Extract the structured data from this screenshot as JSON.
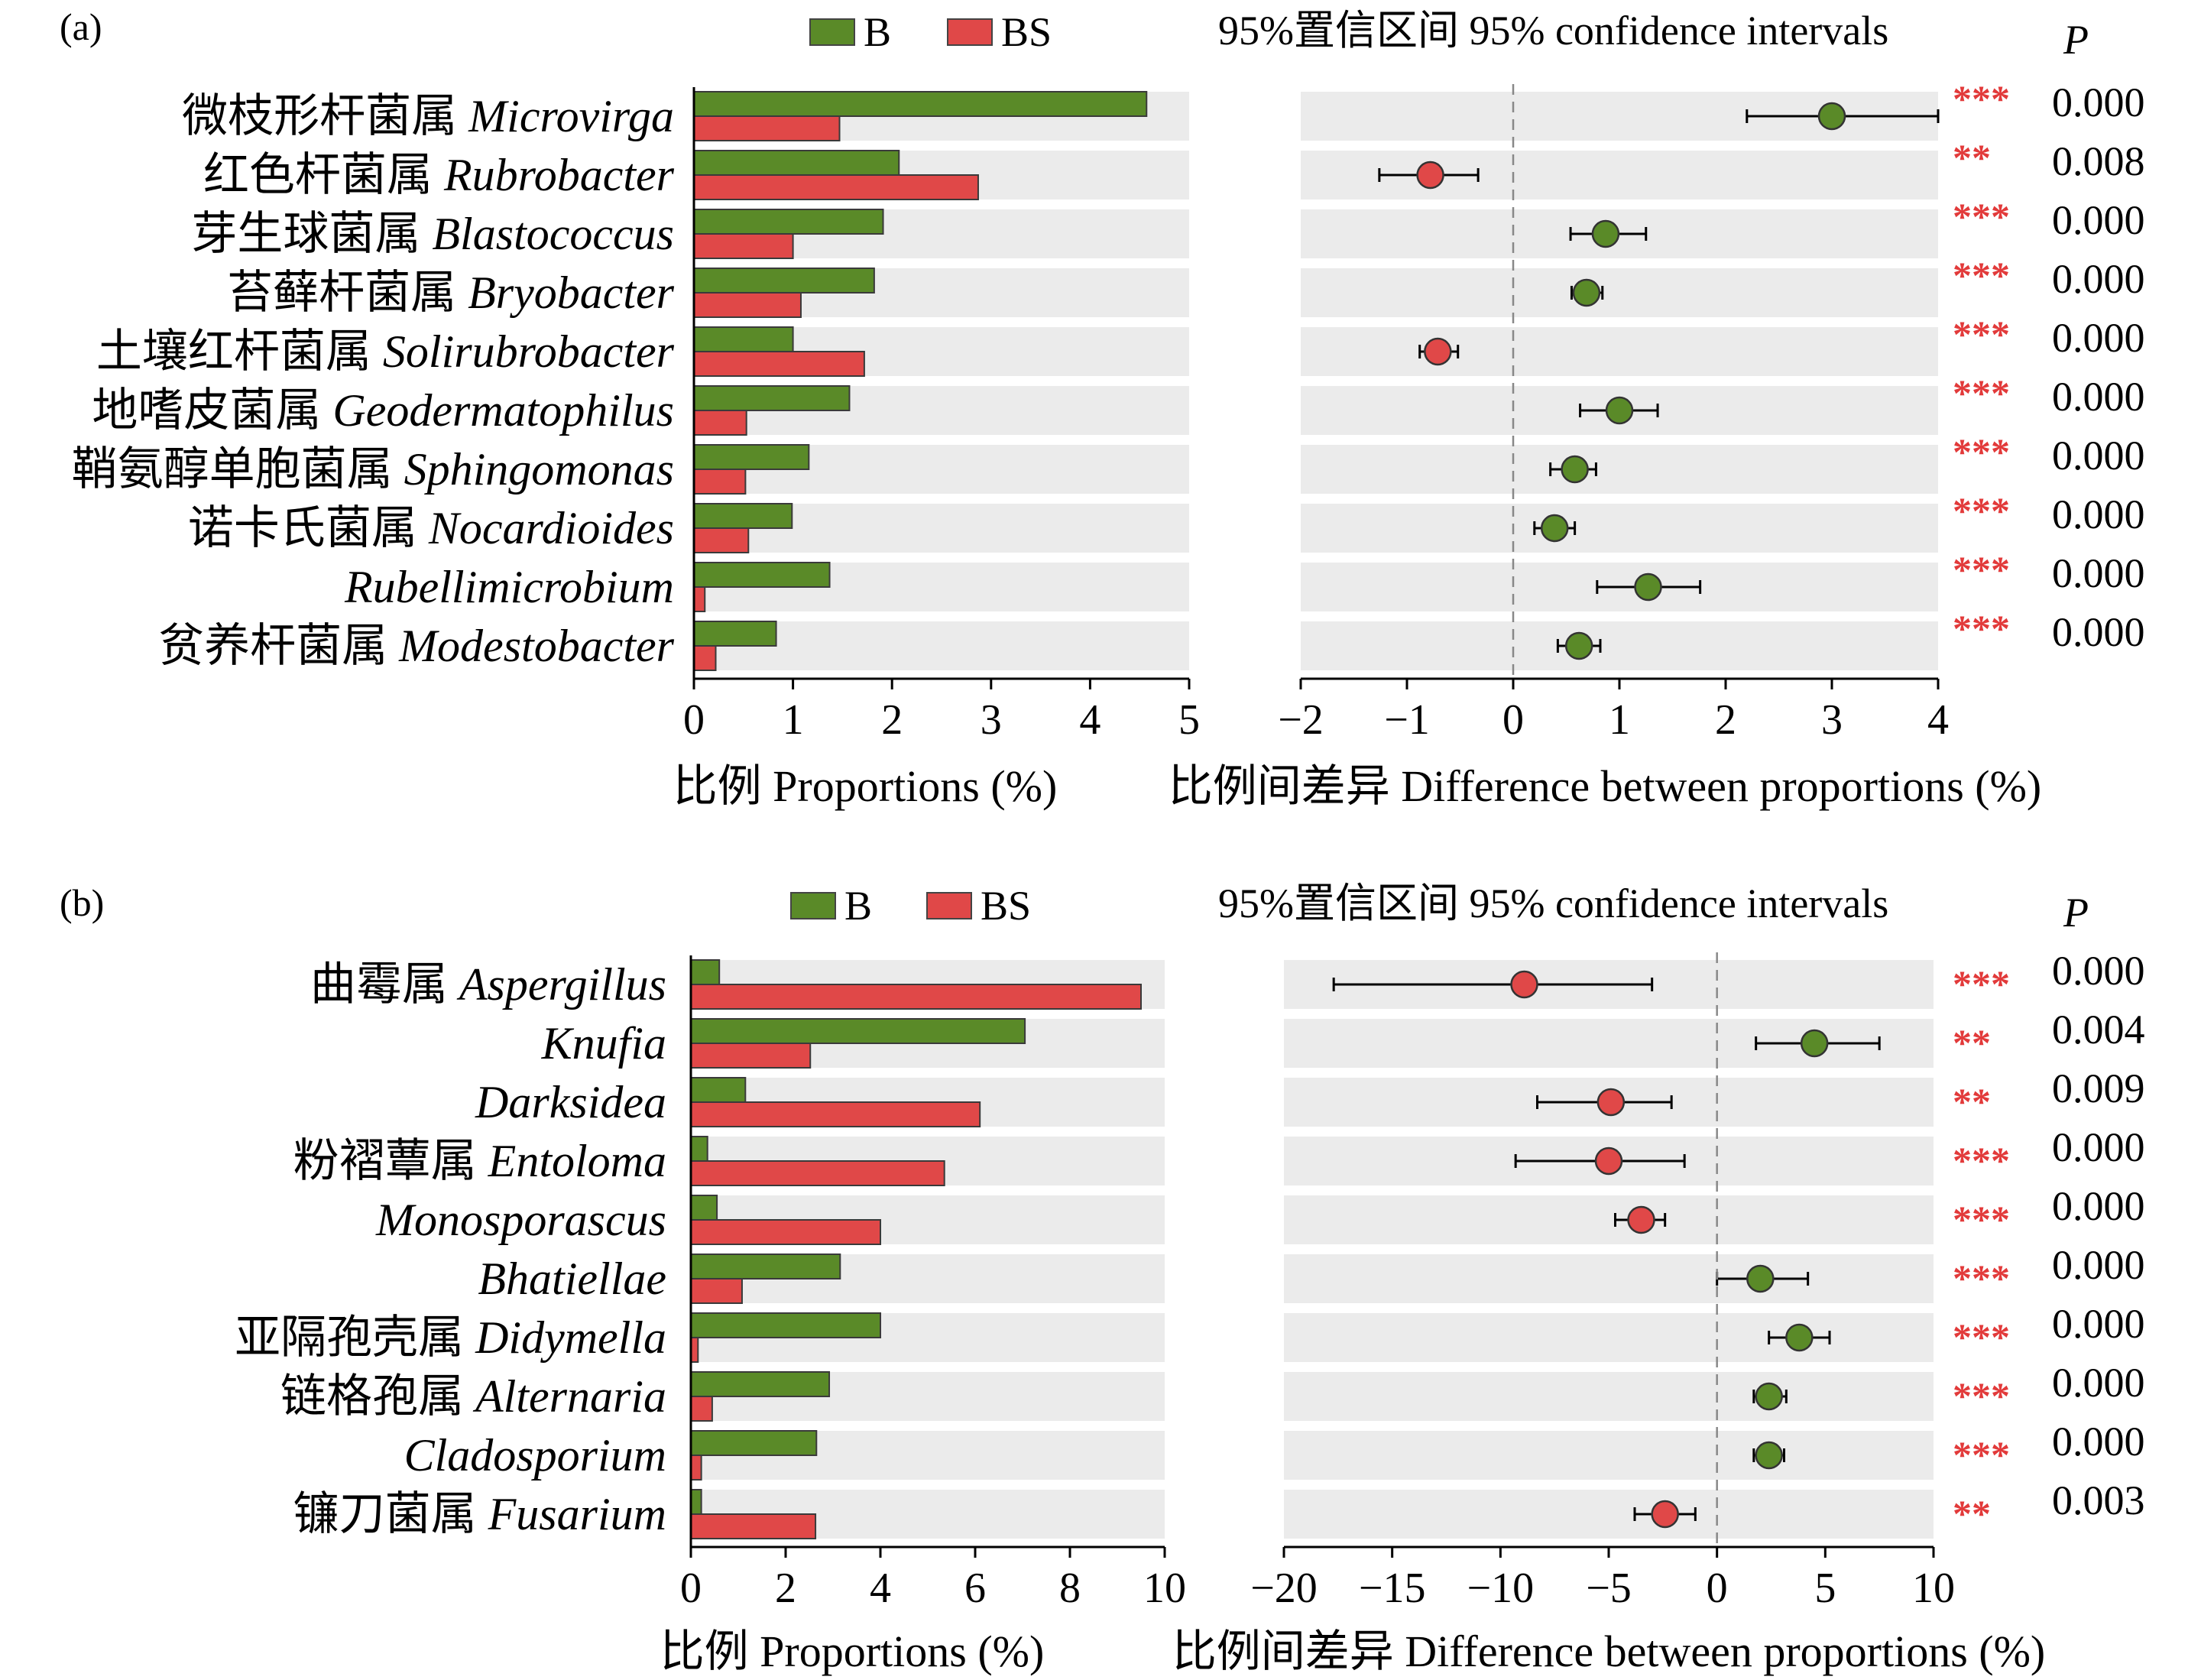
{
  "colors": {
    "B": "#5a8a28",
    "BS": "#e04848",
    "row_bg": "#ebebeb",
    "sig": "#e23a3a"
  },
  "legend": {
    "B": "B",
    "BS": "BS"
  },
  "panels": [
    {
      "panel_label": "(a)",
      "ci_title": "95%置信区间 95% confidence intervals",
      "p_header": "P",
      "prop_xlabel": "比例 Proportions (%)",
      "diff_xlabel": "比例间差异 Difference between proportions (%)",
      "prop_ticks": [
        "0",
        "1",
        "2",
        "3",
        "4",
        "5"
      ],
      "diff_ticks": [
        "−2",
        "−1",
        "0",
        "1",
        "2",
        "3",
        "4"
      ]
    },
    {
      "panel_label": "(b)",
      "ci_title": "95%置信区间 95% confidence intervals",
      "p_header": "P",
      "prop_xlabel": "比例 Proportions (%)",
      "diff_xlabel": "比例间差异 Difference between proportions (%)",
      "prop_ticks": [
        "0",
        "2",
        "4",
        "6",
        "8",
        "10"
      ],
      "diff_ticks": [
        "−20",
        "−15",
        "−10",
        "−5",
        "0",
        "5",
        "10"
      ]
    }
  ],
  "chart_data": [
    {
      "type": "bar",
      "panel": "(a)",
      "legend": [
        "B",
        "BS"
      ],
      "xlim_proportions": [
        0,
        5
      ],
      "xlim_difference": [
        -2,
        4
      ],
      "rows": [
        {
          "cn": "微枝形杆菌属",
          "genus": "Microvirga",
          "B": 4.57,
          "BS": 1.47,
          "diff": 3.0,
          "ci": [
            2.2,
            4.0
          ],
          "sig": "***",
          "p": "0.000"
        },
        {
          "cn": "红色杆菌属",
          "genus": "Rubrobacter",
          "B": 2.07,
          "BS": 2.87,
          "diff": -0.78,
          "ci": [
            -1.26,
            -0.33
          ],
          "sig": "**",
          "p": "0.008"
        },
        {
          "cn": "芽生球菌属",
          "genus": "Blastococcus",
          "B": 1.91,
          "BS": 1.0,
          "diff": 0.87,
          "ci": [
            0.54,
            1.25
          ],
          "sig": "***",
          "p": "0.000"
        },
        {
          "cn": "苔藓杆菌属",
          "genus": "Bryobacter",
          "B": 1.82,
          "BS": 1.08,
          "diff": 0.69,
          "ci": [
            0.55,
            0.84
          ],
          "sig": "***",
          "p": "0.000"
        },
        {
          "cn": "土壤红杆菌属",
          "genus": "Solirubrobacter",
          "B": 1.0,
          "BS": 1.72,
          "diff": -0.71,
          "ci": [
            -0.88,
            -0.52
          ],
          "sig": "***",
          "p": "0.000"
        },
        {
          "cn": "地嗜皮菌属",
          "genus": "Geodermatophilus",
          "B": 1.57,
          "BS": 0.53,
          "diff": 1.0,
          "ci": [
            0.63,
            1.36
          ],
          "sig": "***",
          "p": "0.000"
        },
        {
          "cn": "鞘氨醇单胞菌属",
          "genus": "Sphingomonas",
          "B": 1.16,
          "BS": 0.52,
          "diff": 0.58,
          "ci": [
            0.35,
            0.78
          ],
          "sig": "***",
          "p": "0.000"
        },
        {
          "cn": "诺卡氏菌属",
          "genus": "Nocardioides",
          "B": 0.99,
          "BS": 0.55,
          "diff": 0.39,
          "ci": [
            0.2,
            0.58
          ],
          "sig": "***",
          "p": "0.000"
        },
        {
          "cn": "",
          "genus": "Rubellimicrobium",
          "B": 1.37,
          "BS": 0.11,
          "diff": 1.27,
          "ci": [
            0.79,
            1.76
          ],
          "sig": "***",
          "p": "0.000"
        },
        {
          "cn": "贫养杆菌属",
          "genus": "Modestobacter",
          "B": 0.83,
          "BS": 0.22,
          "diff": 0.62,
          "ci": [
            0.42,
            0.82
          ],
          "sig": "***",
          "p": "0.000"
        }
      ]
    },
    {
      "type": "bar",
      "panel": "(b)",
      "legend": [
        "B",
        "BS"
      ],
      "xlim_proportions": [
        0,
        10
      ],
      "xlim_difference": [
        -20,
        10
      ],
      "rows": [
        {
          "cn": "曲霉属",
          "genus": "Aspergillus",
          "B": 0.6,
          "BS": 9.5,
          "diff": -8.9,
          "ci": [
            -17.7,
            -3.0
          ],
          "sig": "***",
          "p": "0.000"
        },
        {
          "cn": "",
          "genus": "Knufia",
          "B": 7.05,
          "BS": 2.52,
          "diff": 4.5,
          "ci": [
            1.8,
            7.5
          ],
          "sig": "**",
          "p": "0.004"
        },
        {
          "cn": "",
          "genus": "Darksidea",
          "B": 1.15,
          "BS": 6.1,
          "diff": -4.9,
          "ci": [
            -8.3,
            -2.1
          ],
          "sig": "**",
          "p": "0.009"
        },
        {
          "cn": "粉褶蕈属",
          "genus": "Entoloma",
          "B": 0.35,
          "BS": 5.35,
          "diff": -5.0,
          "ci": [
            -9.3,
            -1.5
          ],
          "sig": "***",
          "p": "0.000"
        },
        {
          "cn": "",
          "genus": "Monosporascus",
          "B": 0.55,
          "BS": 4.0,
          "diff": -3.5,
          "ci": [
            -4.7,
            -2.4
          ],
          "sig": "***",
          "p": "0.000"
        },
        {
          "cn": "",
          "genus": "Bhatiellae",
          "B": 3.15,
          "BS": 1.08,
          "diff": 2.0,
          "ci": [
            0.0,
            4.2
          ],
          "sig": "***",
          "p": "0.000"
        },
        {
          "cn": "亚隔孢壳属",
          "genus": "Didymella",
          "B": 4.0,
          "BS": 0.15,
          "diff": 3.8,
          "ci": [
            2.4,
            5.2
          ],
          "sig": "***",
          "p": "0.000"
        },
        {
          "cn": "链格孢属",
          "genus": "Alternaria",
          "B": 2.92,
          "BS": 0.45,
          "diff": 2.4,
          "ci": [
            1.7,
            3.2
          ],
          "sig": "***",
          "p": "0.000"
        },
        {
          "cn": "",
          "genus": "Cladosporium",
          "B": 2.65,
          "BS": 0.22,
          "diff": 2.4,
          "ci": [
            1.7,
            3.1
          ],
          "sig": "***",
          "p": "0.000"
        },
        {
          "cn": "镰刀菌属",
          "genus": "Fusarium",
          "B": 0.22,
          "BS": 2.63,
          "diff": -2.4,
          "ci": [
            -3.8,
            -1.0
          ],
          "sig": "**",
          "p": "0.003"
        }
      ]
    }
  ]
}
